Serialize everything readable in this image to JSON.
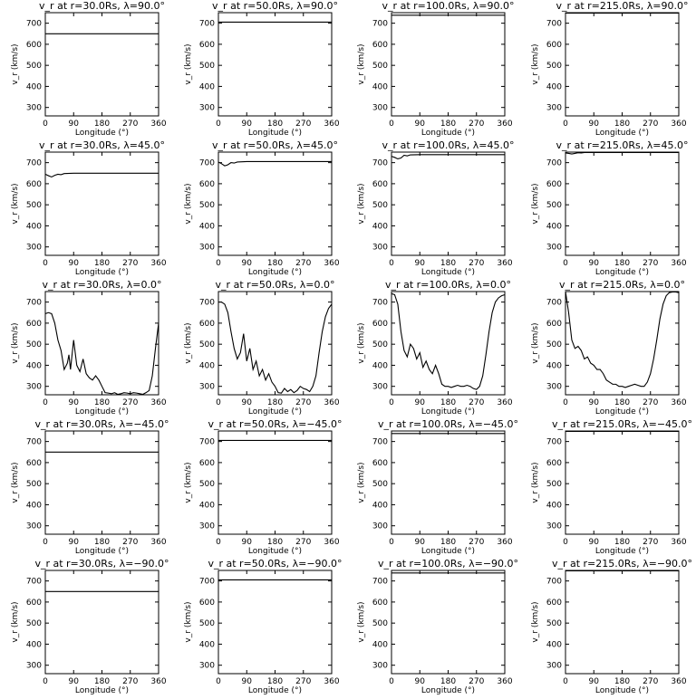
{
  "figure": {
    "xlabel": "Longitude (°)",
    "ylabel": "v_r (km/s)",
    "xticks": [
      "0",
      "90",
      "180",
      "270",
      "360"
    ],
    "yticks": [
      "300",
      "400",
      "500",
      "600",
      "700"
    ]
  },
  "chart_data": [
    {
      "type": "line",
      "title": "v_r at r=30.0Rs, λ=90.0°",
      "xlim": [
        0,
        360
      ],
      "ylim": [
        260,
        750
      ],
      "x": [
        0,
        360
      ],
      "series": [
        {
          "values": [
            650,
            650
          ]
        }
      ]
    },
    {
      "type": "line",
      "title": "v_r at r=50.0Rs, λ=90.0°",
      "xlim": [
        0,
        360
      ],
      "ylim": [
        260,
        750
      ],
      "x": [
        0,
        360
      ],
      "series": [
        {
          "values": [
            705,
            705
          ]
        }
      ]
    },
    {
      "type": "line",
      "title": "v_r at r=100.0Rs, λ=90.0°",
      "xlim": [
        0,
        360
      ],
      "ylim": [
        260,
        750
      ],
      "x": [
        0,
        360
      ],
      "series": [
        {
          "values": [
            738,
            738
          ]
        }
      ]
    },
    {
      "type": "line",
      "title": "v_r at r=215.0Rs, λ=90.0°",
      "xlim": [
        0,
        360
      ],
      "ylim": [
        260,
        750
      ],
      "x": [
        0,
        360
      ],
      "series": [
        {
          "values": [
            748,
            748
          ]
        }
      ]
    },
    {
      "type": "line",
      "title": "v_r at r=30.0Rs, λ=45.0°",
      "xlim": [
        0,
        360
      ],
      "ylim": [
        260,
        750
      ],
      "x": [
        0,
        10,
        20,
        30,
        40,
        50,
        60,
        90,
        180,
        270,
        360
      ],
      "series": [
        {
          "values": [
            645,
            638,
            632,
            640,
            645,
            643,
            648,
            650,
            650,
            650,
            650
          ]
        }
      ]
    },
    {
      "type": "line",
      "title": "v_r at r=50.0Rs, λ=45.0°",
      "xlim": [
        0,
        360
      ],
      "ylim": [
        260,
        750
      ],
      "x": [
        0,
        10,
        20,
        30,
        40,
        50,
        60,
        90,
        180,
        270,
        360
      ],
      "series": [
        {
          "values": [
            703,
            695,
            685,
            690,
            700,
            698,
            703,
            705,
            705,
            705,
            705
          ]
        }
      ]
    },
    {
      "type": "line",
      "title": "v_r at r=100.0Rs, λ=45.0°",
      "xlim": [
        0,
        360
      ],
      "ylim": [
        260,
        750
      ],
      "x": [
        0,
        10,
        20,
        30,
        40,
        50,
        60,
        90,
        180,
        270,
        360
      ],
      "series": [
        {
          "values": [
            730,
            725,
            718,
            722,
            735,
            732,
            737,
            738,
            738,
            738,
            738
          ]
        }
      ]
    },
    {
      "type": "line",
      "title": "v_r at r=215.0Rs, λ=45.0°",
      "xlim": [
        0,
        360
      ],
      "ylim": [
        260,
        750
      ],
      "x": [
        0,
        10,
        20,
        30,
        40,
        50,
        60,
        90,
        180,
        270,
        360
      ],
      "series": [
        {
          "values": [
            746,
            744,
            741,
            744,
            747,
            746,
            748,
            748,
            748,
            748,
            748
          ]
        }
      ]
    },
    {
      "type": "line",
      "title": "v_r at r=30.0Rs, λ=0.0°",
      "xlim": [
        0,
        360
      ],
      "ylim": [
        260,
        750
      ],
      "x": [
        0,
        10,
        20,
        30,
        40,
        50,
        60,
        70,
        75,
        80,
        90,
        100,
        110,
        120,
        130,
        140,
        150,
        160,
        170,
        180,
        190,
        200,
        210,
        220,
        230,
        240,
        250,
        260,
        270,
        280,
        290,
        300,
        310,
        320,
        330,
        340,
        350,
        360
      ],
      "series": [
        {
          "values": [
            645,
            650,
            645,
            600,
            520,
            470,
            380,
            410,
            450,
            380,
            520,
            400,
            370,
            430,
            360,
            340,
            330,
            350,
            330,
            300,
            270,
            268,
            265,
            270,
            262,
            265,
            270,
            268,
            265,
            270,
            268,
            265,
            262,
            270,
            280,
            350,
            480,
            600
          ]
        }
      ]
    },
    {
      "type": "line",
      "title": "v_r at r=50.0Rs, λ=0.0°",
      "xlim": [
        0,
        360
      ],
      "ylim": [
        260,
        750
      ],
      "x": [
        0,
        10,
        20,
        30,
        40,
        50,
        60,
        70,
        80,
        90,
        100,
        110,
        120,
        130,
        140,
        150,
        160,
        170,
        180,
        190,
        200,
        210,
        220,
        230,
        240,
        250,
        260,
        270,
        280,
        290,
        300,
        310,
        320,
        330,
        340,
        350,
        360
      ],
      "series": [
        {
          "values": [
            700,
            700,
            690,
            650,
            560,
            480,
            430,
            460,
            550,
            420,
            480,
            380,
            420,
            350,
            380,
            330,
            360,
            320,
            300,
            270,
            268,
            290,
            275,
            285,
            270,
            280,
            300,
            290,
            285,
            275,
            300,
            350,
            460,
            560,
            630,
            670,
            690
          ]
        }
      ]
    },
    {
      "type": "line",
      "title": "v_r at r=100.0Rs, λ=0.0°",
      "xlim": [
        0,
        360
      ],
      "ylim": [
        260,
        750
      ],
      "x": [
        0,
        10,
        20,
        30,
        40,
        50,
        60,
        70,
        80,
        90,
        100,
        110,
        120,
        130,
        140,
        150,
        160,
        170,
        180,
        190,
        200,
        210,
        220,
        230,
        240,
        250,
        260,
        270,
        280,
        290,
        300,
        310,
        320,
        330,
        340,
        350,
        360
      ],
      "series": [
        {
          "values": [
            740,
            735,
            690,
            560,
            470,
            440,
            500,
            480,
            430,
            460,
            390,
            420,
            380,
            360,
            400,
            360,
            310,
            300,
            300,
            295,
            300,
            305,
            300,
            300,
            305,
            300,
            290,
            285,
            300,
            350,
            450,
            560,
            650,
            700,
            720,
            730,
            735
          ]
        }
      ]
    },
    {
      "type": "line",
      "title": "v_r at r=215.0Rs, λ=0.0°",
      "xlim": [
        0,
        360
      ],
      "ylim": [
        260,
        750
      ],
      "x": [
        0,
        10,
        20,
        30,
        40,
        50,
        60,
        70,
        80,
        90,
        100,
        110,
        120,
        130,
        140,
        150,
        160,
        170,
        180,
        190,
        200,
        210,
        220,
        230,
        240,
        250,
        260,
        270,
        280,
        290,
        300,
        310,
        320,
        330,
        340,
        350,
        360
      ],
      "series": [
        {
          "values": [
            750,
            650,
            520,
            480,
            490,
            470,
            430,
            440,
            410,
            400,
            380,
            380,
            360,
            330,
            320,
            310,
            310,
            300,
            300,
            295,
            300,
            305,
            310,
            305,
            300,
            300,
            320,
            360,
            430,
            520,
            620,
            690,
            730,
            745,
            748,
            748,
            745
          ]
        }
      ]
    },
    {
      "type": "line",
      "title": "v_r at r=30.0Rs, λ=−45.0°",
      "xlim": [
        0,
        360
      ],
      "ylim": [
        260,
        750
      ],
      "x": [
        0,
        360
      ],
      "series": [
        {
          "values": [
            650,
            650
          ]
        }
      ]
    },
    {
      "type": "line",
      "title": "v_r at r=50.0Rs, λ=−45.0°",
      "xlim": [
        0,
        360
      ],
      "ylim": [
        260,
        750
      ],
      "x": [
        0,
        360
      ],
      "series": [
        {
          "values": [
            705,
            705
          ]
        }
      ]
    },
    {
      "type": "line",
      "title": "v_r at r=100.0Rs, λ=−45.0°",
      "xlim": [
        0,
        360
      ],
      "ylim": [
        260,
        750
      ],
      "x": [
        0,
        360
      ],
      "series": [
        {
          "values": [
            738,
            738
          ]
        }
      ]
    },
    {
      "type": "line",
      "title": "v_r at r=215.0Rs, λ=−45.0°",
      "xlim": [
        0,
        360
      ],
      "ylim": [
        260,
        750
      ],
      "x": [
        0,
        360
      ],
      "series": [
        {
          "values": [
            748,
            748
          ]
        }
      ]
    },
    {
      "type": "line",
      "title": "v_r at r=30.0Rs, λ=−90.0°",
      "xlim": [
        0,
        360
      ],
      "ylim": [
        260,
        750
      ],
      "x": [
        0,
        360
      ],
      "series": [
        {
          "values": [
            650,
            650
          ]
        }
      ]
    },
    {
      "type": "line",
      "title": "v_r at r=50.0Rs, λ=−90.0°",
      "xlim": [
        0,
        360
      ],
      "ylim": [
        260,
        750
      ],
      "x": [
        0,
        360
      ],
      "series": [
        {
          "values": [
            705,
            705
          ]
        }
      ]
    },
    {
      "type": "line",
      "title": "v_r at r=100.0Rs, λ=−90.0°",
      "xlim": [
        0,
        360
      ],
      "ylim": [
        260,
        750
      ],
      "x": [
        0,
        360
      ],
      "series": [
        {
          "values": [
            738,
            738
          ]
        }
      ]
    },
    {
      "type": "line",
      "title": "v_r at r=215.0Rs, λ=−90.0°",
      "xlim": [
        0,
        360
      ],
      "ylim": [
        260,
        750
      ],
      "x": [
        0,
        360
      ],
      "series": [
        {
          "values": [
            748,
            748
          ]
        }
      ]
    }
  ]
}
